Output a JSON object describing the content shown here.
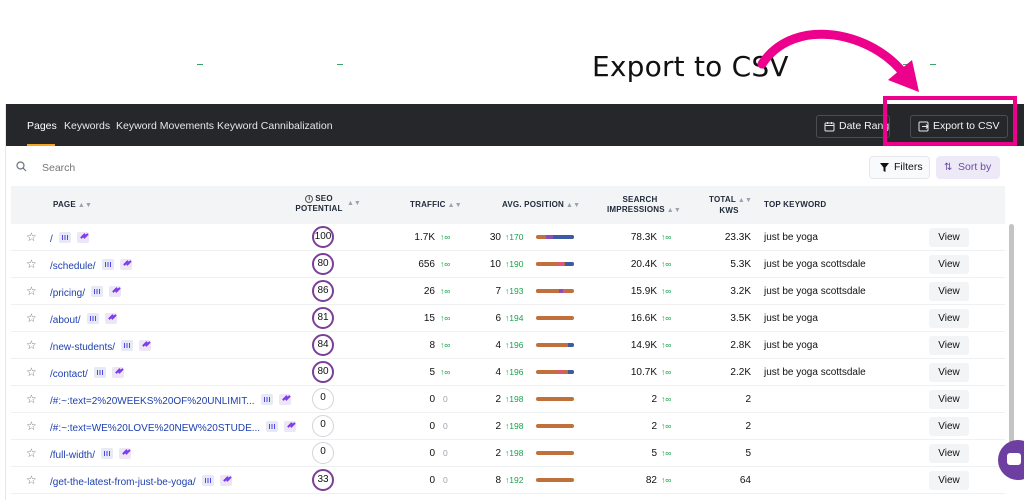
{
  "annotation": {
    "text": "Export to CSV",
    "arrow_color": "#ec008c"
  },
  "toolbar": {
    "tabs": [
      {
        "label": "Pages",
        "active": true
      },
      {
        "label": "Keywords"
      },
      {
        "label": "Keyword Movements"
      },
      {
        "label": "Keyword Cannibalization"
      }
    ],
    "date_range_label": "Date Range",
    "export_label": "Export to CSV"
  },
  "search": {
    "placeholder": "Search"
  },
  "filters_label": "Filters",
  "sort_label": "Sort by",
  "colors": {
    "accent": "#f5a524",
    "seo_ring": "#7b3f98",
    "up": "#16a34a",
    "highlight": "#ec008c"
  },
  "table": {
    "headers": {
      "page": "PAGE",
      "seo1": "SEO",
      "seo2": "POTENTIAL",
      "traffic": "TRAFFIC",
      "avg_position": "AVG. POSITION",
      "impr1": "SEARCH",
      "impr2": "IMPRESSIONS",
      "kws1": "TOTAL",
      "kws2": "KWS",
      "top_keyword": "TOP KEYWORD"
    },
    "rows": [
      {
        "page": "/",
        "seo": "100",
        "traffic": "1.7K",
        "traffic_delta": "↑∞",
        "pos": "30",
        "pos_delta": "↑170",
        "impressions": "78.3K",
        "imp_delta": "↑∞",
        "kws": "23.3K",
        "top_keyword": "just be yoga",
        "view": "View"
      },
      {
        "page": "/schedule/",
        "seo": "80",
        "traffic": "656",
        "traffic_delta": "↑∞",
        "pos": "10",
        "pos_delta": "↑190",
        "impressions": "20.4K",
        "imp_delta": "↑∞",
        "kws": "5.3K",
        "top_keyword": "just be yoga scottsdale",
        "view": "View"
      },
      {
        "page": "/pricing/",
        "seo": "86",
        "traffic": "26",
        "traffic_delta": "↑∞",
        "pos": "7",
        "pos_delta": "↑193",
        "impressions": "15.9K",
        "imp_delta": "↑∞",
        "kws": "3.2K",
        "top_keyword": "just be yoga scottsdale",
        "view": "View"
      },
      {
        "page": "/about/",
        "seo": "81",
        "traffic": "15",
        "traffic_delta": "↑∞",
        "pos": "6",
        "pos_delta": "↑194",
        "impressions": "16.6K",
        "imp_delta": "↑∞",
        "kws": "3.5K",
        "top_keyword": "just be yoga",
        "view": "View"
      },
      {
        "page": "/new-students/",
        "seo": "84",
        "traffic": "8",
        "traffic_delta": "↑∞",
        "pos": "4",
        "pos_delta": "↑196",
        "impressions": "14.9K",
        "imp_delta": "↑∞",
        "kws": "2.8K",
        "top_keyword": "just be yoga",
        "view": "View"
      },
      {
        "page": "/contact/",
        "seo": "80",
        "traffic": "5",
        "traffic_delta": "↑∞",
        "pos": "4",
        "pos_delta": "↑196",
        "impressions": "10.7K",
        "imp_delta": "↑∞",
        "kws": "2.2K",
        "top_keyword": "just be yoga scottsdale",
        "view": "View"
      },
      {
        "page": "/#:~:text=2%20WEEKS%20OF%20UNLIMIT...",
        "seo": "0",
        "traffic": "0",
        "traffic_delta": "0",
        "pos": "2",
        "pos_delta": "↑198",
        "impressions": "2",
        "imp_delta": "↑∞",
        "kws": "2",
        "top_keyword": "",
        "view": "View"
      },
      {
        "page": "/#:~:text=WE%20LOVE%20NEW%20STUDE...",
        "seo": "0",
        "traffic": "0",
        "traffic_delta": "0",
        "pos": "2",
        "pos_delta": "↑198",
        "impressions": "2",
        "imp_delta": "↑∞",
        "kws": "2",
        "top_keyword": "",
        "view": "View"
      },
      {
        "page": "/full-width/",
        "seo": "0",
        "traffic": "0",
        "traffic_delta": "0",
        "pos": "2",
        "pos_delta": "↑198",
        "impressions": "5",
        "imp_delta": "↑∞",
        "kws": "5",
        "top_keyword": "",
        "view": "View"
      },
      {
        "page": "/get-the-latest-from-just-be-yoga/",
        "seo": "33",
        "traffic": "0",
        "traffic_delta": "0",
        "pos": "8",
        "pos_delta": "↑192",
        "impressions": "82",
        "imp_delta": "↑∞",
        "kws": "64",
        "top_keyword": "",
        "view": "View"
      }
    ]
  }
}
